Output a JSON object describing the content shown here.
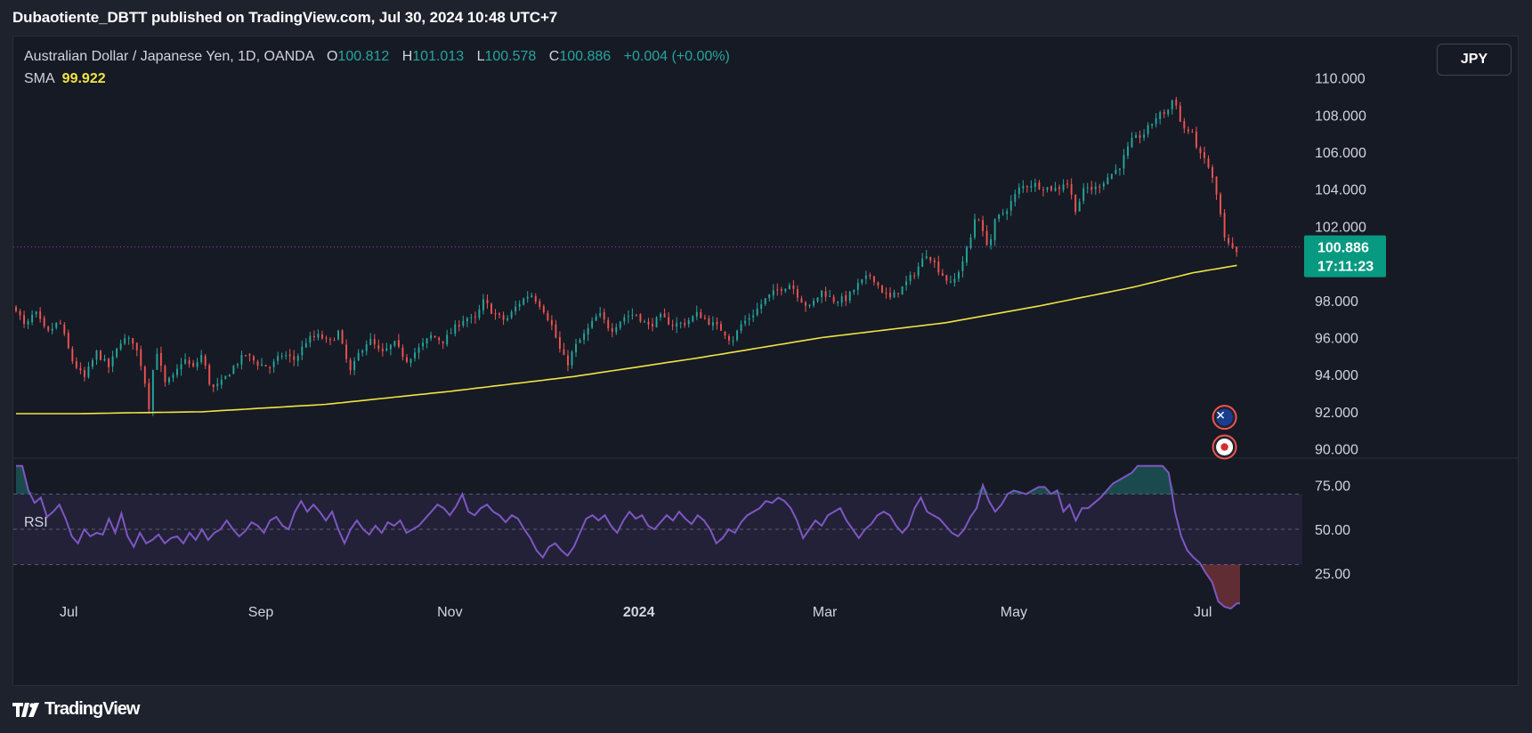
{
  "header": {
    "published": "Dubaotiente_DBTT published on TradingView.com, Jul 30, 2024 10:48 UTC+7"
  },
  "legend": {
    "symbol": "Australian Dollar / Japanese Yen, 1D, OANDA",
    "o_label": "O",
    "o_value": "100.812",
    "h_label": "H",
    "h_value": "101.013",
    "l_label": "L",
    "l_value": "100.578",
    "c_label": "C",
    "c_value": "100.886",
    "change": "+0.004 (+0.00%)",
    "sma_label": "SMA",
    "sma_value": "99.922",
    "rsi_label": "RSI"
  },
  "currency_button": "JPY",
  "price_badge": {
    "price": "100.886",
    "countdown": "17:11:23"
  },
  "footer": {
    "brand": "TradingView"
  },
  "colors": {
    "up": "#26a69a",
    "down": "#ef5350",
    "sma": "#f0e443",
    "rsi": "#7e57c2",
    "badge": "#089981"
  },
  "chart_data": {
    "type": "candlestick",
    "price_axis": {
      "ticks": [
        "90.000",
        "92.000",
        "94.000",
        "96.000",
        "98.000",
        "100.000",
        "102.000",
        "104.000",
        "106.000",
        "108.000",
        "110.000"
      ],
      "ylim": [
        89.5,
        110.8
      ]
    },
    "rsi_axis": {
      "ticks": [
        "25.00",
        "50.00",
        "75.00"
      ],
      "ylim": [
        0,
        100
      ],
      "overbought": 70,
      "oversold": 30
    },
    "time_axis": {
      "labels": [
        "Jul",
        "Sep",
        "Nov",
        "2024",
        "Mar",
        "May",
        "Jul"
      ],
      "label_days": [
        17,
        79,
        140,
        201,
        261,
        322,
        383
      ]
    },
    "close_path": [
      [
        0,
        97.6
      ],
      [
        3,
        96.5
      ],
      [
        6,
        97.4
      ],
      [
        10,
        96.2
      ],
      [
        14,
        96.9
      ],
      [
        18,
        94.8
      ],
      [
        22,
        93.8
      ],
      [
        26,
        95.2
      ],
      [
        30,
        94.4
      ],
      [
        34,
        95.9
      ],
      [
        38,
        95.8
      ],
      [
        41,
        94.2
      ],
      [
        43,
        92.2
      ],
      [
        45,
        95.6
      ],
      [
        48,
        93.5
      ],
      [
        51,
        93.9
      ],
      [
        54,
        94.9
      ],
      [
        57,
        94.3
      ],
      [
        60,
        95.1
      ],
      [
        63,
        93.2
      ],
      [
        66,
        93.5
      ],
      [
        70,
        94.4
      ],
      [
        74,
        95.1
      ],
      [
        78,
        94.6
      ],
      [
        82,
        94.4
      ],
      [
        86,
        95.1
      ],
      [
        90,
        94.8
      ],
      [
        94,
        95.9
      ],
      [
        98,
        96.1
      ],
      [
        101,
        95.7
      ],
      [
        104,
        96.3
      ],
      [
        106,
        95.1
      ],
      [
        108,
        94.1
      ],
      [
        111,
        95.3
      ],
      [
        114,
        95.9
      ],
      [
        118,
        95.1
      ],
      [
        122,
        95.7
      ],
      [
        126,
        94.8
      ],
      [
        130,
        95.4
      ],
      [
        134,
        96.1
      ],
      [
        138,
        95.8
      ],
      [
        142,
        96.6
      ],
      [
        145,
        97.1
      ],
      [
        148,
        96.9
      ],
      [
        151,
        98.0
      ],
      [
        154,
        97.3
      ],
      [
        158,
        96.9
      ],
      [
        162,
        97.8
      ],
      [
        166,
        98.4
      ],
      [
        170,
        97.6
      ],
      [
        173,
        96.6
      ],
      [
        176,
        95.1
      ],
      [
        178,
        94.6
      ],
      [
        180,
        95.4
      ],
      [
        184,
        96.3
      ],
      [
        188,
        97.3
      ],
      [
        192,
        96.4
      ],
      [
        196,
        97.1
      ],
      [
        200,
        97.3
      ],
      [
        204,
        96.6
      ],
      [
        208,
        97.1
      ],
      [
        212,
        96.7
      ],
      [
        216,
        96.8
      ],
      [
        220,
        97.3
      ],
      [
        224,
        96.8
      ],
      [
        228,
        96.4
      ],
      [
        231,
        95.8
      ],
      [
        234,
        96.7
      ],
      [
        238,
        97.3
      ],
      [
        242,
        98.1
      ],
      [
        246,
        98.6
      ],
      [
        250,
        98.9
      ],
      [
        253,
        98.1
      ],
      [
        256,
        97.6
      ],
      [
        260,
        98.5
      ],
      [
        264,
        98.0
      ],
      [
        268,
        98.1
      ],
      [
        272,
        98.9
      ],
      [
        276,
        99.4
      ],
      [
        279,
        98.6
      ],
      [
        282,
        98.1
      ],
      [
        286,
        98.7
      ],
      [
        290,
        99.5
      ],
      [
        294,
        100.6
      ],
      [
        298,
        99.6
      ],
      [
        302,
        98.8
      ],
      [
        305,
        99.9
      ],
      [
        308,
        101.3
      ],
      [
        310,
        102.9
      ],
      [
        312,
        101.6
      ],
      [
        314,
        100.9
      ],
      [
        316,
        102.3
      ],
      [
        320,
        103.0
      ],
      [
        324,
        104.1
      ],
      [
        328,
        104.3
      ],
      [
        332,
        104.1
      ],
      [
        336,
        104.0
      ],
      [
        339,
        104.5
      ],
      [
        342,
        102.9
      ],
      [
        345,
        104.1
      ],
      [
        348,
        104.0
      ],
      [
        352,
        104.6
      ],
      [
        356,
        105.2
      ],
      [
        360,
        106.6
      ],
      [
        364,
        107.0
      ],
      [
        368,
        107.9
      ],
      [
        372,
        108.3
      ],
      [
        374,
        109.2
      ],
      [
        375,
        107.8
      ],
      [
        377,
        107.3
      ],
      [
        380,
        106.9
      ],
      [
        382,
        105.8
      ],
      [
        384,
        105.6
      ],
      [
        386,
        104.6
      ],
      [
        388,
        103.3
      ],
      [
        390,
        101.3
      ],
      [
        392,
        100.8
      ],
      [
        394,
        100.5
      ],
      [
        395,
        100.886
      ]
    ],
    "sma_path": [
      [
        0,
        91.9
      ],
      [
        20,
        91.9
      ],
      [
        60,
        92.0
      ],
      [
        100,
        92.4
      ],
      [
        140,
        93.1
      ],
      [
        180,
        93.9
      ],
      [
        220,
        94.9
      ],
      [
        260,
        96.0
      ],
      [
        300,
        96.8
      ],
      [
        330,
        97.7
      ],
      [
        360,
        98.7
      ],
      [
        380,
        99.5
      ],
      [
        395,
        99.922
      ]
    ],
    "rsi_path": [
      [
        0,
        90
      ],
      [
        2,
        86
      ],
      [
        4,
        72
      ],
      [
        6,
        65
      ],
      [
        8,
        68
      ],
      [
        10,
        57
      ],
      [
        12,
        60
      ],
      [
        14,
        64
      ],
      [
        16,
        56
      ],
      [
        18,
        46
      ],
      [
        20,
        42
      ],
      [
        22,
        50
      ],
      [
        24,
        46
      ],
      [
        26,
        48
      ],
      [
        28,
        47
      ],
      [
        30,
        56
      ],
      [
        32,
        48
      ],
      [
        34,
        59
      ],
      [
        36,
        46
      ],
      [
        38,
        40
      ],
      [
        40,
        48
      ],
      [
        42,
        42
      ],
      [
        44,
        44
      ],
      [
        46,
        47
      ],
      [
        48,
        42
      ],
      [
        50,
        45
      ],
      [
        52,
        46
      ],
      [
        54,
        42
      ],
      [
        56,
        48
      ],
      [
        58,
        44
      ],
      [
        60,
        50
      ],
      [
        62,
        44
      ],
      [
        64,
        48
      ],
      [
        66,
        50
      ],
      [
        68,
        55
      ],
      [
        70,
        50
      ],
      [
        72,
        46
      ],
      [
        74,
        49
      ],
      [
        76,
        54
      ],
      [
        78,
        52
      ],
      [
        80,
        48
      ],
      [
        82,
        55
      ],
      [
        84,
        57
      ],
      [
        86,
        52
      ],
      [
        88,
        50
      ],
      [
        90,
        60
      ],
      [
        92,
        66
      ],
      [
        94,
        60
      ],
      [
        96,
        64
      ],
      [
        98,
        60
      ],
      [
        100,
        55
      ],
      [
        102,
        60
      ],
      [
        104,
        50
      ],
      [
        106,
        42
      ],
      [
        108,
        50
      ],
      [
        110,
        55
      ],
      [
        112,
        50
      ],
      [
        114,
        47
      ],
      [
        116,
        52
      ],
      [
        118,
        48
      ],
      [
        120,
        54
      ],
      [
        122,
        52
      ],
      [
        124,
        55
      ],
      [
        126,
        48
      ],
      [
        128,
        50
      ],
      [
        130,
        52
      ],
      [
        132,
        56
      ],
      [
        134,
        60
      ],
      [
        136,
        64
      ],
      [
        138,
        62
      ],
      [
        140,
        58
      ],
      [
        142,
        63
      ],
      [
        144,
        70
      ],
      [
        146,
        60
      ],
      [
        148,
        58
      ],
      [
        150,
        62
      ],
      [
        152,
        64
      ],
      [
        154,
        60
      ],
      [
        156,
        58
      ],
      [
        158,
        54
      ],
      [
        160,
        58
      ],
      [
        162,
        56
      ],
      [
        164,
        50
      ],
      [
        166,
        45
      ],
      [
        168,
        38
      ],
      [
        170,
        34
      ],
      [
        172,
        40
      ],
      [
        174,
        42
      ],
      [
        176,
        38
      ],
      [
        178,
        35
      ],
      [
        180,
        40
      ],
      [
        182,
        48
      ],
      [
        184,
        56
      ],
      [
        186,
        58
      ],
      [
        188,
        55
      ],
      [
        190,
        58
      ],
      [
        192,
        52
      ],
      [
        194,
        48
      ],
      [
        196,
        55
      ],
      [
        198,
        60
      ],
      [
        200,
        56
      ],
      [
        202,
        58
      ],
      [
        204,
        52
      ],
      [
        206,
        50
      ],
      [
        208,
        54
      ],
      [
        210,
        58
      ],
      [
        212,
        55
      ],
      [
        214,
        60
      ],
      [
        216,
        56
      ],
      [
        218,
        53
      ],
      [
        220,
        58
      ],
      [
        222,
        55
      ],
      [
        224,
        50
      ],
      [
        226,
        42
      ],
      [
        228,
        45
      ],
      [
        230,
        50
      ],
      [
        232,
        48
      ],
      [
        234,
        54
      ],
      [
        236,
        58
      ],
      [
        238,
        60
      ],
      [
        240,
        62
      ],
      [
        242,
        66
      ],
      [
        244,
        65
      ],
      [
        246,
        68
      ],
      [
        248,
        66
      ],
      [
        250,
        62
      ],
      [
        252,
        55
      ],
      [
        254,
        45
      ],
      [
        256,
        50
      ],
      [
        258,
        55
      ],
      [
        260,
        52
      ],
      [
        262,
        58
      ],
      [
        264,
        60
      ],
      [
        266,
        62
      ],
      [
        268,
        55
      ],
      [
        270,
        50
      ],
      [
        272,
        45
      ],
      [
        274,
        50
      ],
      [
        276,
        53
      ],
      [
        278,
        58
      ],
      [
        280,
        60
      ],
      [
        282,
        58
      ],
      [
        284,
        52
      ],
      [
        286,
        48
      ],
      [
        288,
        52
      ],
      [
        290,
        62
      ],
      [
        292,
        68
      ],
      [
        294,
        60
      ],
      [
        296,
        58
      ],
      [
        298,
        56
      ],
      [
        300,
        52
      ],
      [
        302,
        48
      ],
      [
        304,
        46
      ],
      [
        306,
        50
      ],
      [
        308,
        57
      ],
      [
        310,
        62
      ],
      [
        312,
        75
      ],
      [
        314,
        66
      ],
      [
        316,
        60
      ],
      [
        318,
        64
      ],
      [
        320,
        70
      ],
      [
        322,
        72
      ],
      [
        324,
        71
      ],
      [
        326,
        70
      ],
      [
        328,
        72
      ],
      [
        330,
        74
      ],
      [
        332,
        74
      ],
      [
        334,
        70
      ],
      [
        336,
        72
      ],
      [
        338,
        60
      ],
      [
        340,
        64
      ],
      [
        342,
        55
      ],
      [
        344,
        62
      ],
      [
        346,
        62
      ],
      [
        348,
        65
      ],
      [
        350,
        68
      ],
      [
        352,
        72
      ],
      [
        354,
        76
      ],
      [
        356,
        78
      ],
      [
        358,
        80
      ],
      [
        360,
        82
      ],
      [
        362,
        88
      ],
      [
        364,
        88
      ],
      [
        366,
        86
      ],
      [
        368,
        91
      ],
      [
        370,
        90
      ],
      [
        372,
        82
      ],
      [
        374,
        60
      ],
      [
        376,
        46
      ],
      [
        378,
        38
      ],
      [
        380,
        34
      ],
      [
        382,
        31
      ],
      [
        384,
        25
      ],
      [
        386,
        20
      ],
      [
        388,
        9
      ],
      [
        390,
        6
      ],
      [
        392,
        5
      ],
      [
        394,
        8
      ],
      [
        395,
        8
      ]
    ]
  }
}
